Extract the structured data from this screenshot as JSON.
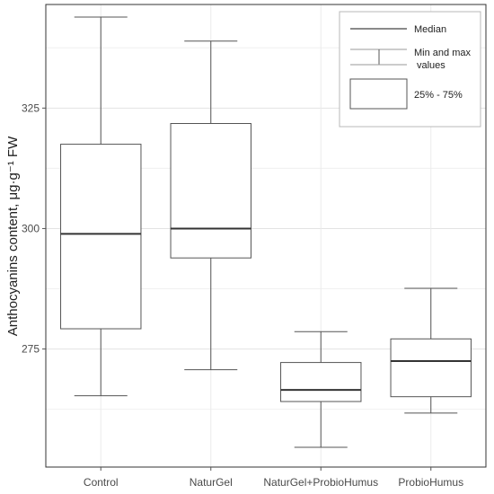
{
  "chart_data": {
    "type": "box",
    "ylabel": "Anthocyanins content, μg·g⁻¹ FW",
    "xlabel": "",
    "ylim": [
      250.5,
      346.5
    ],
    "yticks": [
      275,
      300,
      325
    ],
    "grid": true,
    "legend_position": "top-right",
    "categories": [
      "Control",
      "NaturGel",
      "NaturGel+ProbioHumus",
      "ProbioHumus"
    ],
    "boxes": [
      {
        "category": "Control",
        "min": 265.3,
        "q1": 279.2,
        "median": 298.9,
        "q3": 317.5,
        "max": 343.9
      },
      {
        "category": "NaturGel",
        "min": 270.7,
        "q1": 293.9,
        "median": 300.0,
        "q3": 321.8,
        "max": 338.9
      },
      {
        "category": "NaturGel+ProbioHumus",
        "min": 254.6,
        "q1": 264.1,
        "median": 266.5,
        "q3": 272.2,
        "max": 278.6
      },
      {
        "category": "ProbioHumus",
        "min": 261.7,
        "q1": 265.1,
        "median": 272.5,
        "q3": 277.1,
        "max": 287.6
      }
    ],
    "legend": {
      "median_label": "Median",
      "range_label_line1": "Min and max",
      "range_label_line2": "values",
      "iqr_label": "25% - 75%"
    }
  }
}
